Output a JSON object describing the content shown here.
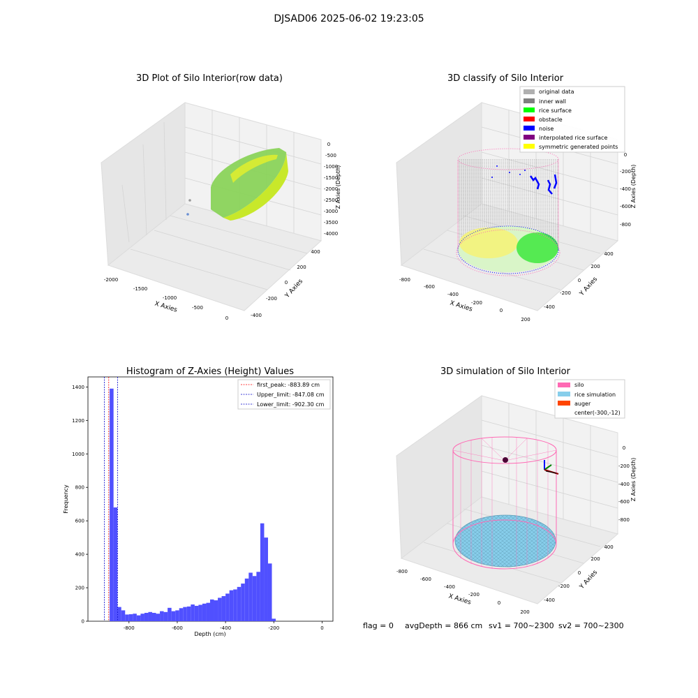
{
  "figure_title": "DJSAD06 2025-06-02 19:23:05",
  "colors": {
    "pane_back": "#f2f2f2",
    "pane_side": "#e6e6e6",
    "pane_floor": "#ebebeb",
    "grid": "#d0d0d0",
    "hist_bar": "#5050ff",
    "first_peak_line": "#ff0000",
    "limit_line": "#0000cc",
    "silo": "#ff69b4",
    "rice_sim": "#87ceeb",
    "auger": "#ff4500",
    "original": "#b0b0b0",
    "inner_wall": "#808080",
    "rice_surface": "#00ff00",
    "obstacle": "#ff0000",
    "noise": "#0000ff",
    "interpolated": "#800080",
    "symmetric": "#ffff00"
  },
  "panel1": {
    "title": "3D Plot of Silo Interior(row data)",
    "xlabel": "X Axies",
    "ylabel": "Y Axies",
    "zlabel": "Z Axies (Depth)",
    "xticks": [
      "-2000",
      "-1500",
      "-1000",
      "-500",
      "0"
    ],
    "yticks": [
      "-400",
      "-200",
      "0",
      "200",
      "400"
    ],
    "zticks": [
      "0",
      "-500",
      "-1000",
      "-1500",
      "-2000",
      "-2500",
      "-3000",
      "-3500",
      "-4000"
    ]
  },
  "panel2": {
    "title": "3D classify of Silo Interior",
    "xlabel": "X Axies",
    "ylabel": "Y Axies",
    "zlabel": "Z Axies (Depth)",
    "xticks": [
      "-800",
      "-600",
      "-400",
      "-200",
      "0",
      "200"
    ],
    "yticks": [
      "-400",
      "-200",
      "0",
      "200",
      "400"
    ],
    "zticks": [
      "0",
      "-200",
      "-400",
      "-600",
      "-800"
    ],
    "legend": [
      {
        "label": "original data",
        "color": "#b0b0b0"
      },
      {
        "label": "inner wall",
        "color": "#808080"
      },
      {
        "label": "rice surface",
        "color": "#00ff00"
      },
      {
        "label": "obstacle",
        "color": "#ff0000"
      },
      {
        "label": "noise",
        "color": "#0000ff"
      },
      {
        "label": "interpolated rice surface",
        "color": "#800080"
      },
      {
        "label": "symmetric generated points",
        "color": "#ffff00"
      }
    ]
  },
  "panel3": {
    "title": "3D simulation of Silo Interior",
    "xlabel": "X Axies",
    "ylabel": "Y Axies",
    "zlabel": "Z Axies (Depth)",
    "xticks": [
      "-800",
      "-600",
      "-400",
      "-200",
      "0",
      "200"
    ],
    "yticks": [
      "-400",
      "-200",
      "0",
      "200",
      "400"
    ],
    "zticks": [
      "0",
      "-200",
      "-400",
      "-600",
      "-800"
    ],
    "legend": [
      {
        "label": "silo",
        "color": "#ff69b4"
      },
      {
        "label": "rice simulation",
        "color": "#87ceeb"
      },
      {
        "label": "auger",
        "color": "#ff4500"
      },
      {
        "label": "center(-300,-12)",
        "color": null
      }
    ]
  },
  "status_line": {
    "flag": "flag = 0",
    "avg_depth": "avgDepth = 866 cm",
    "sv1": "sv1 = 700~2300",
    "sv2": "sv2 = 700~2300"
  },
  "chart_data": {
    "type": "bar",
    "title": "Histogram of Z-Axies (Height) Values",
    "xlabel": "Depth (cm)",
    "ylabel": "Frequency",
    "xlim": [
      -970,
      45
    ],
    "ylim": [
      0,
      1460
    ],
    "xticks": [
      -800,
      -600,
      -400,
      -200,
      0
    ],
    "yticks": [
      0,
      200,
      400,
      600,
      800,
      1000,
      1200,
      1400
    ],
    "bin_start": -880,
    "bin_width": 16,
    "values": [
      1390,
      680,
      85,
      65,
      40,
      42,
      45,
      35,
      45,
      50,
      55,
      50,
      45,
      60,
      55,
      80,
      60,
      65,
      78,
      85,
      88,
      100,
      92,
      98,
      105,
      110,
      130,
      125,
      140,
      150,
      165,
      185,
      190,
      205,
      225,
      255,
      290,
      270,
      295,
      585,
      500,
      345,
      15
    ],
    "lines": [
      {
        "label": "first_peak: -883.89 cm",
        "x": -883.89,
        "color": "#ff0000"
      },
      {
        "label": "Upper_limit: -847.08 cm",
        "x": -847.08,
        "color": "#0000cc"
      },
      {
        "label": "Lower_limit: -902.30 cm",
        "x": -902.3,
        "color": "#0000cc"
      }
    ]
  }
}
